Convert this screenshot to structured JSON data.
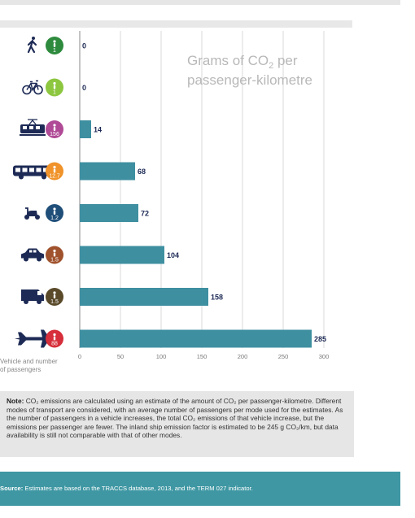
{
  "chart_data": {
    "type": "bar",
    "orientation": "horizontal",
    "title": "Grams of CO₂ per passenger-kilometre",
    "title_lines": [
      "Grams of CO",
      "2",
      " per",
      "passenger-kilometre"
    ],
    "categories": [
      "walking",
      "bicycle",
      "train",
      "bus",
      "scooter",
      "car",
      "van",
      "airplane"
    ],
    "passengers": [
      "1",
      "1",
      "156",
      "12.7",
      "1.2",
      "1.5",
      "1.5",
      "88"
    ],
    "values": [
      0,
      0,
      14,
      68,
      72,
      104,
      158,
      285
    ],
    "xticks": [
      0,
      50,
      100,
      150,
      200,
      250,
      300
    ],
    "xlim": [
      0,
      300
    ],
    "grid": true,
    "badge_colors": [
      "#2e8b3e",
      "#8dc63f",
      "#b04a96",
      "#f0932a",
      "#1f4e79",
      "#a0522d",
      "#5a4a2a",
      "#d62e3a"
    ],
    "bar_color": "#3e8fa0",
    "icon_color": "#1d2a55"
  },
  "axis_note": [
    "Vehicle and number",
    "of passengers"
  ],
  "note": {
    "label": "Note:",
    "text": "CO₂ emissions are calculated using an estimate of the amount of CO₂ per passenger-kilometre. Different modes of transport are considered, with an average number of passengers per mode used for the estimates. As the number of passengers in a vehicle increases, the total CO₂ emissions of that vehicle increase, but the emissions per passenger are fewer. The inland ship emission factor is estimated to be 245 g CO₂/km, but data availability is still not comparable with that of other modes."
  },
  "source": {
    "label": "Source:",
    "text": "Estimates are based on the TRACCS database, 2013, and the TERM 027 indicator."
  }
}
